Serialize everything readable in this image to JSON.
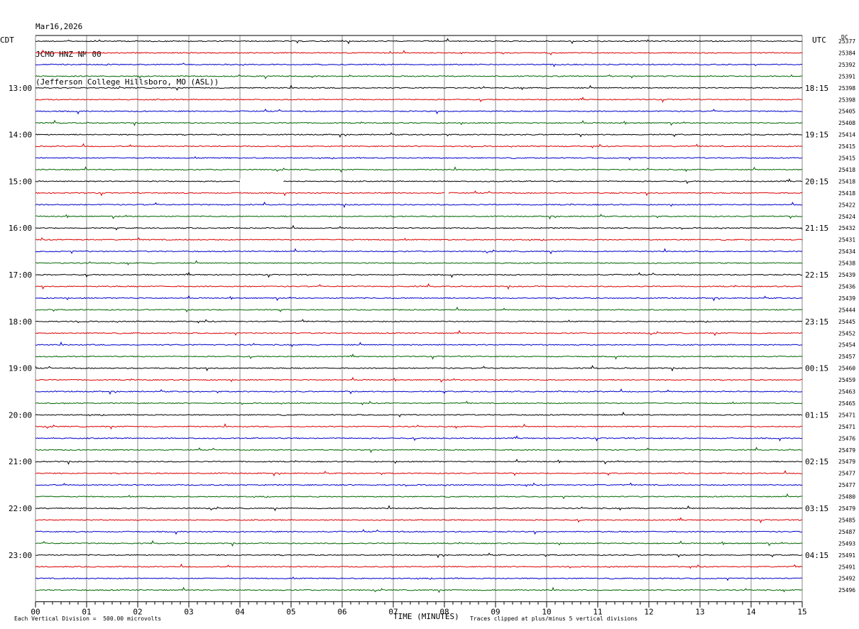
{
  "header": {
    "date": "Mar16,2026",
    "station": "JCMO HNZ NM 00",
    "location": "(Jefferson College Hillsboro, MO (ASL))"
  },
  "left_axis_title": "CDT",
  "right_axis_title": "UTC",
  "dc_title": "DC",
  "footer": {
    "scale": "Each Vertical Division =  500.00 microvolts",
    "xlabel": "TIME (MINUTES)",
    "clip": "Traces clipped at plus/minus 5 vertical divisions"
  },
  "chart_data": {
    "type": "line",
    "title": "",
    "xlabel": "TIME (MINUTES)",
    "xlim": [
      0,
      15
    ],
    "x_ticks": [
      "00",
      "01",
      "02",
      "03",
      "04",
      "05",
      "06",
      "07",
      "08",
      "09",
      "10",
      "11",
      "12",
      "13",
      "14",
      "15"
    ],
    "grid": true,
    "trace_colors": [
      "#000000",
      "#dd0000",
      "#0000cc",
      "#006600"
    ],
    "left_time_labels": [
      "13:00",
      "14:00",
      "15:00",
      "16:00",
      "17:00",
      "18:00",
      "19:00",
      "20:00",
      "21:00",
      "22:00",
      "23:00"
    ],
    "right_time_labels": [
      "18:15",
      "19:15",
      "20:15",
      "21:15",
      "22:15",
      "23:15",
      "00:15",
      "01:15",
      "02:15",
      "03:15",
      "04:15"
    ],
    "dc_offsets": [
      "25377",
      "25384",
      "25392",
      "25391",
      "25398",
      "25398",
      "25405",
      "25408",
      "25414",
      "25415",
      "25415",
      "25418",
      "25418",
      "25418",
      "25422",
      "25424",
      "25432",
      "25431",
      "25434",
      "25438",
      "25439",
      "25436",
      "25439",
      "25444",
      "25445",
      "25452",
      "25454",
      "25457",
      "25460",
      "25459",
      "25463",
      "25465",
      "25471",
      "25471",
      "25476",
      "25479",
      "25479",
      "25477",
      "25477",
      "25480",
      "25479",
      "25485",
      "25487",
      "25493",
      "25491",
      "25491",
      "25492",
      "25496"
    ],
    "data_gap": {
      "trace": 12,
      "start_min": 4.0,
      "end_min": 4.85,
      "next_trace_gap_min": 8.05
    }
  }
}
